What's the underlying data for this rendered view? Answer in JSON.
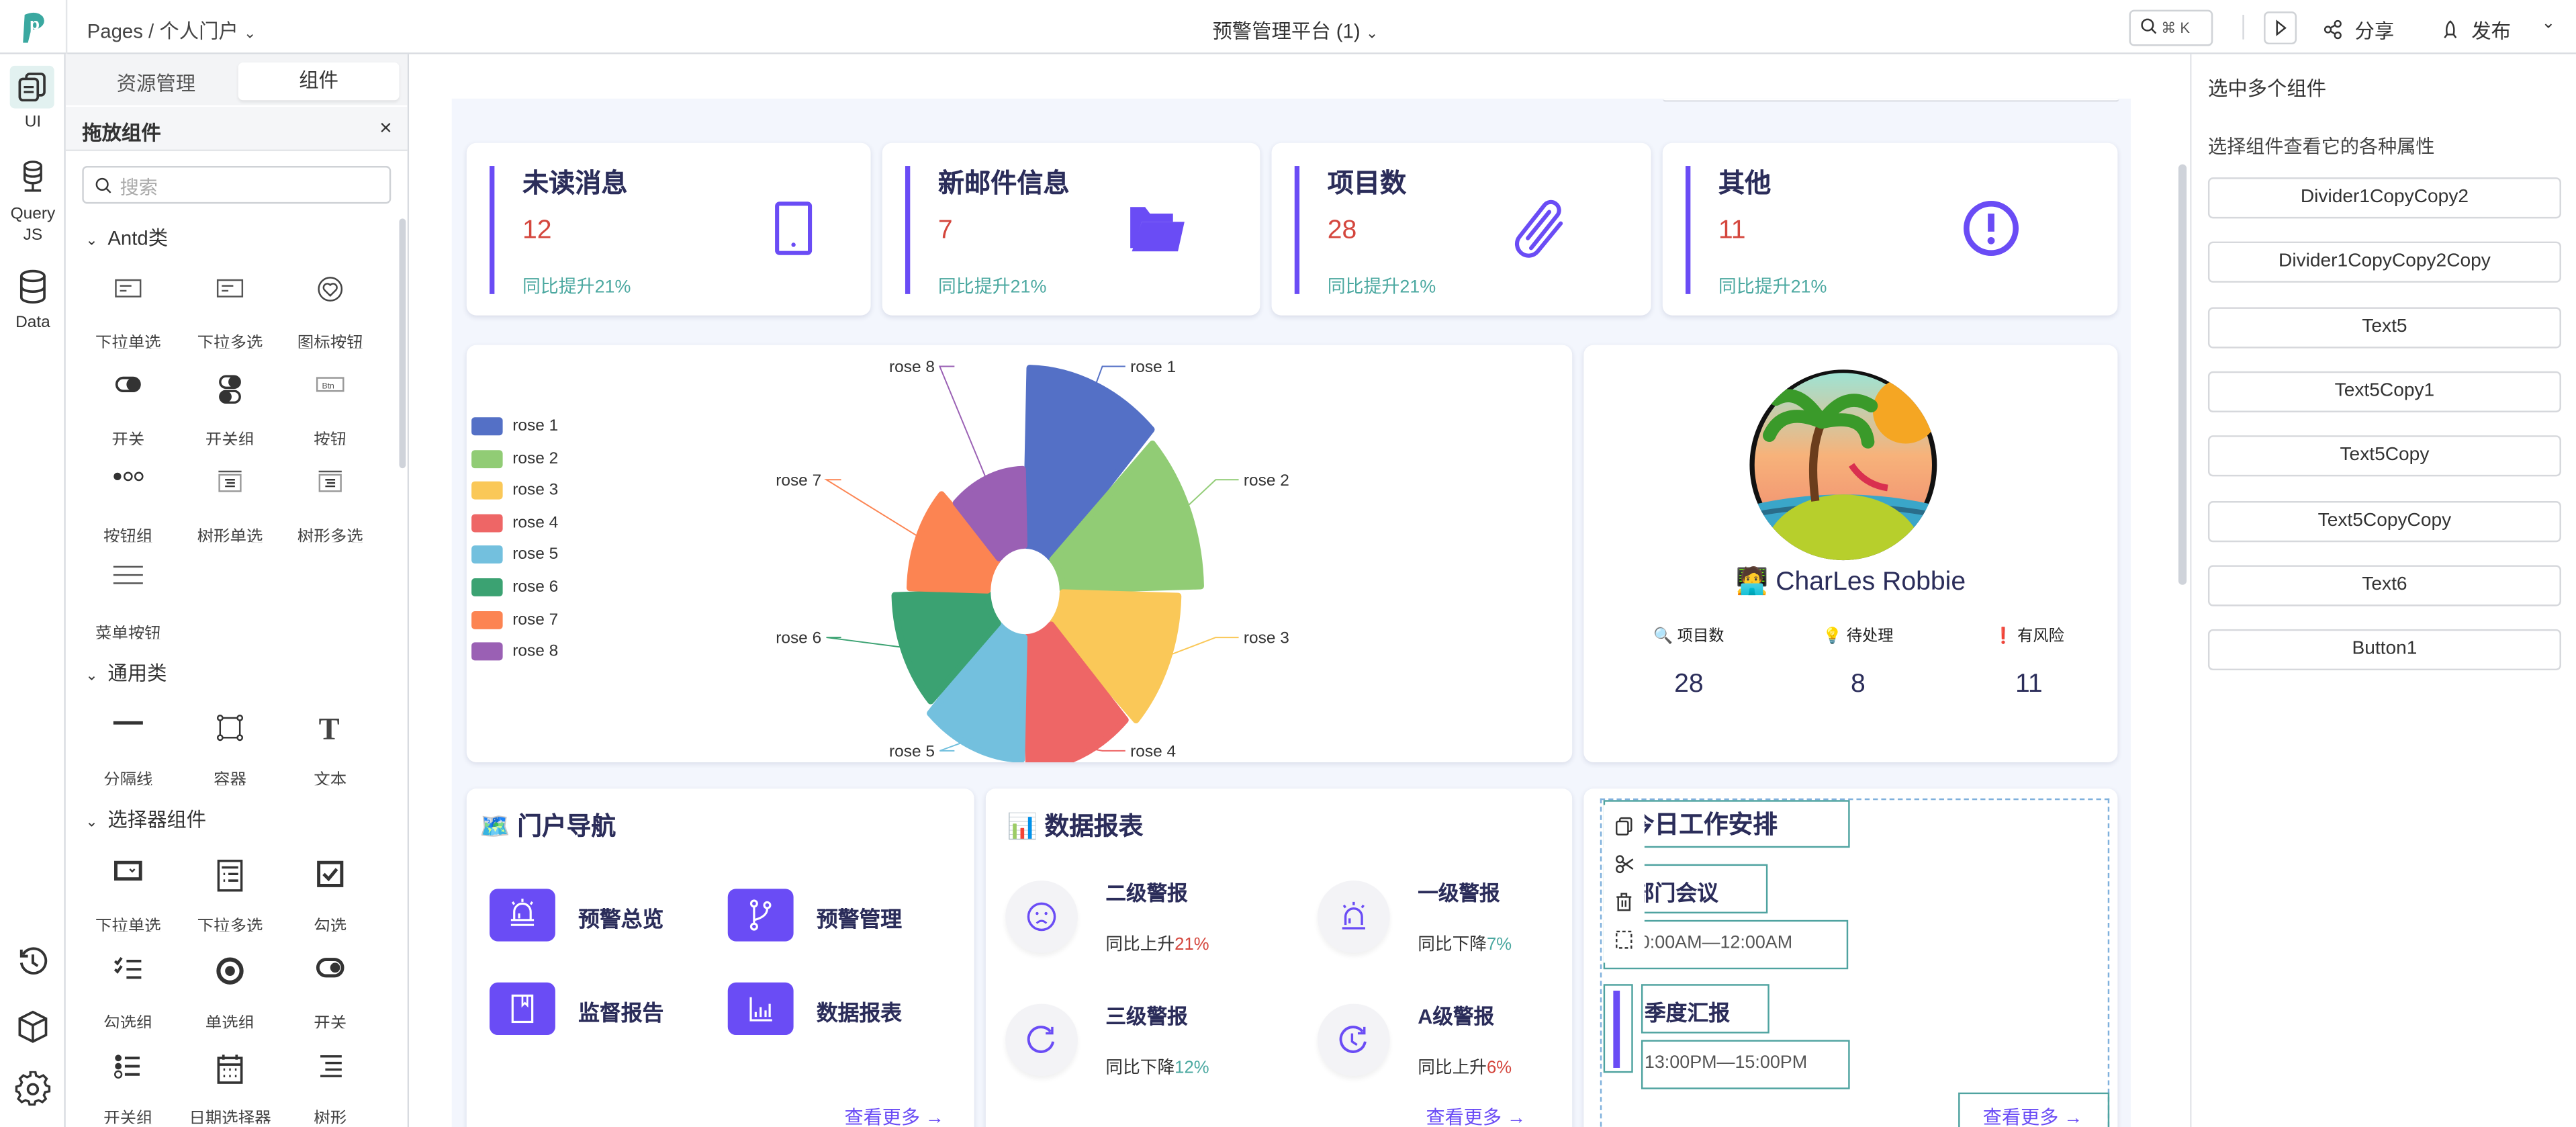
{
  "topbar": {
    "breadcrumb": "Pages / 个人门户",
    "app_title": "预警管理平台 (1)",
    "search_shortcut": "⌘ K",
    "share": "分享",
    "publish": "发布"
  },
  "rail": {
    "items": [
      {
        "label": "UI",
        "icon": "pages-icon"
      },
      {
        "label": "Query JS",
        "icon": "query-icon"
      },
      {
        "label": "Data",
        "icon": "database-icon"
      }
    ],
    "bottom_icons": [
      "history-icon",
      "cube-icon",
      "gear-icon"
    ]
  },
  "panel": {
    "tabs": [
      "资源管理",
      "组件"
    ],
    "active_tab": "组件",
    "header": "拖放组件",
    "search_placeholder": "搜索",
    "sections": [
      {
        "title": "Antd类",
        "items": [
          "下拉单选",
          "下拉多选",
          "图标按钮",
          "开关",
          "开关组",
          "按钮",
          "按钮组",
          "树形单选",
          "树形多选",
          "菜单按钮"
        ]
      },
      {
        "title": "通用类",
        "items": [
          "分隔线",
          "容器",
          "文本"
        ]
      },
      {
        "title": "选择器组件",
        "items": [
          "下拉单选",
          "下拉多选",
          "勾选",
          "勾选组",
          "单选组",
          "开关",
          "开关组",
          "日期选择器",
          "树形"
        ]
      }
    ]
  },
  "stats": [
    {
      "title": "未读消息",
      "value": "12",
      "sub": "同比提升21%",
      "icon": "tablet-icon"
    },
    {
      "title": "新邮件信息",
      "value": "7",
      "sub": "同比提升21%",
      "icon": "folder-icon"
    },
    {
      "title": "项目数",
      "value": "28",
      "sub": "同比提升21%",
      "icon": "paperclip-icon"
    },
    {
      "title": "其他",
      "value": "11",
      "sub": "同比提升21%",
      "icon": "exclamation-circle-icon"
    }
  ],
  "chart_data": {
    "type": "pie",
    "rose": true,
    "legend_position": "left",
    "categories": [
      "rose 1",
      "rose 2",
      "rose 3",
      "rose 4",
      "rose 5",
      "rose 6",
      "rose 7",
      "rose 8"
    ],
    "values": [
      40,
      38,
      32,
      30,
      28,
      26,
      22,
      18
    ],
    "colors": [
      "#5470c6",
      "#91cc75",
      "#fac858",
      "#ee6666",
      "#73c0de",
      "#3ba272",
      "#fc8452",
      "#9a60b4"
    ]
  },
  "profile": {
    "name": "🧑‍💻 CharLes Robbie",
    "stats": [
      {
        "label": "🔍 项目数",
        "value": "28"
      },
      {
        "label": "💡 待处理",
        "value": "8"
      },
      {
        "label": "❗ 有风险",
        "value": "11"
      }
    ]
  },
  "nav": {
    "title": "🗺️ 门户导航",
    "items": [
      {
        "label": "预警总览",
        "icon": "siren-icon"
      },
      {
        "label": "预警管理",
        "icon": "branch-icon"
      },
      {
        "label": "监督报告",
        "icon": "book-icon"
      },
      {
        "label": "数据报表",
        "icon": "bar-chart-icon"
      }
    ],
    "more": "查看更多 →"
  },
  "report": {
    "title": "📊 数据报表",
    "items": [
      {
        "title": "二级警报",
        "prefix": "同比上升",
        "pct": "21%",
        "pct_color": "#d4463d",
        "icon": "sad-face-icon"
      },
      {
        "title": "一级警报",
        "prefix": "同比下降",
        "pct": "7%",
        "pct_color": "#4ba8a0",
        "icon": "siren-icon"
      },
      {
        "title": "三级警报",
        "prefix": "同比下降",
        "pct": "12%",
        "pct_color": "#4ba8a0",
        "icon": "refresh-icon"
      },
      {
        "title": "A级警报",
        "prefix": "同比上升",
        "pct": "6%",
        "pct_color": "#d4463d",
        "icon": "clock-refresh-icon"
      }
    ],
    "more": "查看更多 →"
  },
  "schedule": {
    "title": "今日工作安排",
    "items": [
      {
        "title": "部门会议",
        "time": "10:00AM—12:00AM"
      },
      {
        "title": "季度汇报",
        "time": "13:00PM—15:00PM"
      }
    ],
    "more": "查看更多 →",
    "toolbar": [
      "copy-icon",
      "cut-icon",
      "delete-icon",
      "select-icon"
    ]
  },
  "right_panel": {
    "title": "选中多个组件",
    "hint": "选择组件查看它的各种属性",
    "components": [
      "Divider1CopyCopy2",
      "Divider1CopyCopy2Copy",
      "Text5",
      "Text5Copy1",
      "Text5Copy",
      "Text5CopyCopy",
      "Text6",
      "Button1"
    ]
  },
  "colors": {
    "accent": "#6a4cf5",
    "title": "#2b2d5a",
    "red": "#d4463d",
    "teal": "#4ba8a0"
  }
}
